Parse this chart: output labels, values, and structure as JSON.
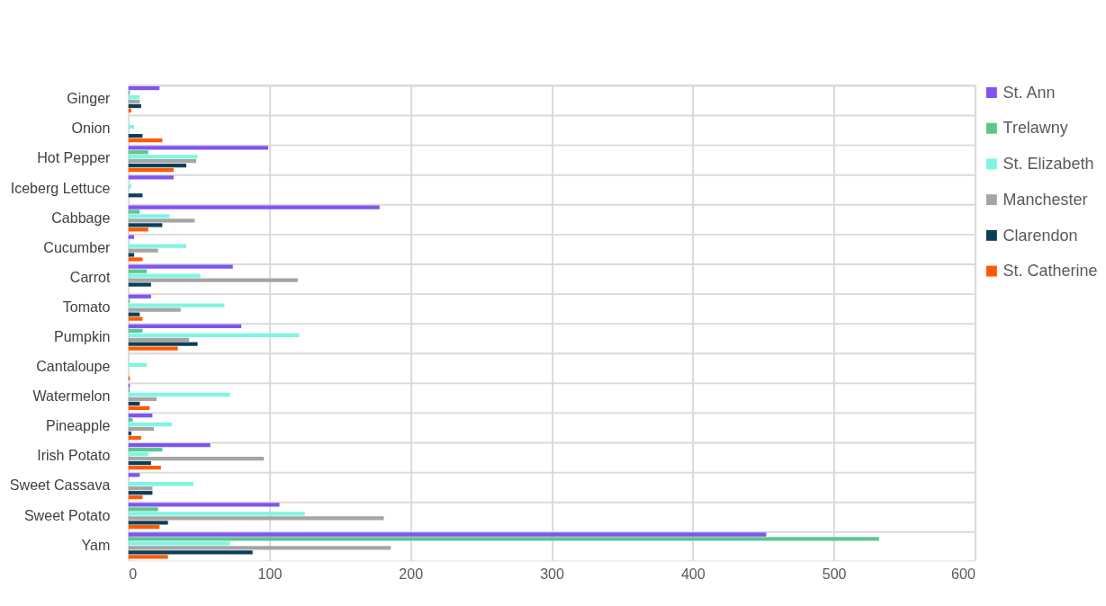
{
  "chart_data": {
    "type": "bar",
    "orientation": "horizontal",
    "categories": [
      "Ginger",
      "Onion",
      "Hot Pepper",
      "Iceberg Lettuce",
      "Cabbage",
      "Cucumber",
      "Carrot",
      "Tomato",
      "Pumpkin",
      "Cantaloupe",
      "Watermelon",
      "Pineapple",
      "Irish Potato",
      "Sweet Cassava",
      "Sweet Potato",
      "Yam"
    ],
    "series": [
      {
        "name": "St. Ann",
        "color": "#8054f2",
        "values": [
          22,
          0,
          99,
          32,
          178,
          4,
          74,
          16,
          80,
          0,
          1,
          17,
          58,
          8,
          107,
          452
        ]
      },
      {
        "name": "Trelawny",
        "color": "#5cc78f",
        "values": [
          1,
          0,
          14,
          0,
          8,
          0,
          13,
          1,
          10,
          0,
          1,
          3,
          24,
          0,
          21,
          532
        ]
      },
      {
        "name": "St. Elizabeth",
        "color": "#7ff5e3",
        "values": [
          8,
          4,
          49,
          2,
          29,
          41,
          51,
          68,
          121,
          13,
          72,
          31,
          14,
          46,
          125,
          72
        ]
      },
      {
        "name": "Manchester",
        "color": "#a5a5a5",
        "values": [
          8,
          0,
          48,
          0,
          47,
          21,
          120,
          37,
          43,
          0,
          20,
          18,
          96,
          17,
          181,
          186
        ]
      },
      {
        "name": "Clarendon",
        "color": "#0b3f58",
        "values": [
          9,
          10,
          41,
          10,
          24,
          4,
          16,
          8,
          49,
          0,
          8,
          2,
          16,
          17,
          28,
          88
        ]
      },
      {
        "name": "St. Catherine",
        "color": "#ff5a00",
        "values": [
          2,
          24,
          32,
          0,
          14,
          10,
          0,
          10,
          35,
          1,
          15,
          9,
          23,
          10,
          22,
          28
        ]
      }
    ],
    "xlim": [
      0,
      600
    ],
    "xticks": [
      0,
      100,
      200,
      300,
      400,
      500,
      600
    ],
    "grid": true,
    "legend": "right"
  }
}
